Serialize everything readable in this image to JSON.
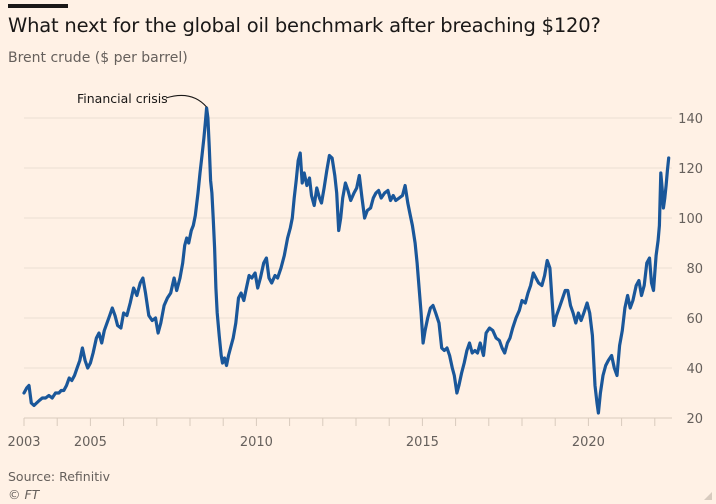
{
  "header": {
    "title": "What next for the global oil benchmark after breaching $120?",
    "subtitle": "Brent crude ($ per barrel)"
  },
  "footer": {
    "source": "Source: Refinitiv",
    "copyright": "© FT"
  },
  "colors": {
    "background": "#fff1e5",
    "line": "#1a579a",
    "grid": "#ebdfd3",
    "text": "#1a1817",
    "muted": "#66605c"
  },
  "chart_data": {
    "type": "line",
    "title": "What next for the global oil benchmark after breaching $120?",
    "subtitle": "Brent crude ($ per barrel)",
    "xlabel": "",
    "ylabel": "Brent crude ($ per barrel)",
    "xlim": [
      2003.0,
      2022.45
    ],
    "ylim": [
      20,
      145
    ],
    "grid": true,
    "y_axis_side": "right",
    "x_ticks": [
      2003,
      2005,
      2010,
      2015,
      2020
    ],
    "x_minor_ticks": [
      2003,
      2004,
      2005,
      2006,
      2007,
      2008,
      2009,
      2010,
      2011,
      2012,
      2013,
      2014,
      2015,
      2016,
      2017,
      2018,
      2019,
      2020,
      2021,
      2022
    ],
    "y_ticks": [
      20,
      40,
      60,
      80,
      100,
      120,
      140
    ],
    "annotations": [
      {
        "text": "Financial crisis",
        "x": 2008.5,
        "y": 144
      }
    ],
    "series": [
      {
        "name": "Brent crude",
        "points": [
          [
            2003.0,
            30
          ],
          [
            2003.08,
            32
          ],
          [
            2003.15,
            33
          ],
          [
            2003.22,
            26
          ],
          [
            2003.3,
            25
          ],
          [
            2003.38,
            26
          ],
          [
            2003.46,
            27
          ],
          [
            2003.55,
            28
          ],
          [
            2003.65,
            28
          ],
          [
            2003.75,
            29
          ],
          [
            2003.85,
            28
          ],
          [
            2003.95,
            30
          ],
          [
            2004.05,
            30
          ],
          [
            2004.12,
            31
          ],
          [
            2004.2,
            31
          ],
          [
            2004.28,
            33
          ],
          [
            2004.36,
            36
          ],
          [
            2004.44,
            35
          ],
          [
            2004.52,
            37
          ],
          [
            2004.6,
            40
          ],
          [
            2004.68,
            43
          ],
          [
            2004.76,
            48
          ],
          [
            2004.84,
            43
          ],
          [
            2004.92,
            40
          ],
          [
            2005.0,
            42
          ],
          [
            2005.08,
            46
          ],
          [
            2005.18,
            52
          ],
          [
            2005.26,
            54
          ],
          [
            2005.34,
            50
          ],
          [
            2005.42,
            55
          ],
          [
            2005.5,
            58
          ],
          [
            2005.58,
            61
          ],
          [
            2005.66,
            64
          ],
          [
            2005.74,
            61
          ],
          [
            2005.82,
            57
          ],
          [
            2005.92,
            56
          ],
          [
            2006.0,
            62
          ],
          [
            2006.1,
            61
          ],
          [
            2006.2,
            66
          ],
          [
            2006.3,
            72
          ],
          [
            2006.4,
            69
          ],
          [
            2006.5,
            74
          ],
          [
            2006.58,
            76
          ],
          [
            2006.66,
            70
          ],
          [
            2006.76,
            61
          ],
          [
            2006.86,
            59
          ],
          [
            2006.96,
            60
          ],
          [
            2007.04,
            54
          ],
          [
            2007.12,
            58
          ],
          [
            2007.22,
            65
          ],
          [
            2007.32,
            68
          ],
          [
            2007.42,
            70
          ],
          [
            2007.52,
            76
          ],
          [
            2007.6,
            71
          ],
          [
            2007.7,
            76
          ],
          [
            2007.78,
            82
          ],
          [
            2007.84,
            89
          ],
          [
            2007.9,
            92
          ],
          [
            2007.96,
            90
          ],
          [
            2008.04,
            95
          ],
          [
            2008.1,
            97
          ],
          [
            2008.16,
            101
          ],
          [
            2008.24,
            110
          ],
          [
            2008.3,
            118
          ],
          [
            2008.36,
            125
          ],
          [
            2008.42,
            132
          ],
          [
            2008.46,
            138
          ],
          [
            2008.5,
            144
          ],
          [
            2008.54,
            140
          ],
          [
            2008.58,
            128
          ],
          [
            2008.62,
            115
          ],
          [
            2008.66,
            110
          ],
          [
            2008.7,
            100
          ],
          [
            2008.74,
            88
          ],
          [
            2008.78,
            72
          ],
          [
            2008.82,
            62
          ],
          [
            2008.88,
            53
          ],
          [
            2008.94,
            45
          ],
          [
            2008.98,
            42
          ],
          [
            2009.04,
            44
          ],
          [
            2009.1,
            41
          ],
          [
            2009.16,
            45
          ],
          [
            2009.22,
            48
          ],
          [
            2009.3,
            52
          ],
          [
            2009.38,
            58
          ],
          [
            2009.46,
            68
          ],
          [
            2009.54,
            70
          ],
          [
            2009.62,
            67
          ],
          [
            2009.7,
            72
          ],
          [
            2009.78,
            77
          ],
          [
            2009.86,
            76
          ],
          [
            2009.96,
            78
          ],
          [
            2010.04,
            72
          ],
          [
            2010.12,
            76
          ],
          [
            2010.22,
            82
          ],
          [
            2010.3,
            84
          ],
          [
            2010.38,
            76
          ],
          [
            2010.46,
            74
          ],
          [
            2010.56,
            77
          ],
          [
            2010.64,
            76
          ],
          [
            2010.74,
            80
          ],
          [
            2010.84,
            85
          ],
          [
            2010.94,
            92
          ],
          [
            2011.02,
            96
          ],
          [
            2011.08,
            100
          ],
          [
            2011.14,
            108
          ],
          [
            2011.2,
            115
          ],
          [
            2011.26,
            123
          ],
          [
            2011.32,
            126
          ],
          [
            2011.38,
            114
          ],
          [
            2011.44,
            118
          ],
          [
            2011.52,
            113
          ],
          [
            2011.6,
            116
          ],
          [
            2011.66,
            109
          ],
          [
            2011.74,
            105
          ],
          [
            2011.82,
            112
          ],
          [
            2011.9,
            108
          ],
          [
            2011.96,
            106
          ],
          [
            2012.04,
            112
          ],
          [
            2012.12,
            119
          ],
          [
            2012.2,
            125
          ],
          [
            2012.28,
            124
          ],
          [
            2012.36,
            117
          ],
          [
            2012.42,
            110
          ],
          [
            2012.48,
            95
          ],
          [
            2012.54,
            100
          ],
          [
            2012.6,
            108
          ],
          [
            2012.68,
            114
          ],
          [
            2012.76,
            111
          ],
          [
            2012.84,
            107
          ],
          [
            2012.94,
            110
          ],
          [
            2013.02,
            112
          ],
          [
            2013.1,
            117
          ],
          [
            2013.18,
            108
          ],
          [
            2013.26,
            100
          ],
          [
            2013.34,
            103
          ],
          [
            2013.44,
            104
          ],
          [
            2013.52,
            108
          ],
          [
            2013.6,
            110
          ],
          [
            2013.68,
            111
          ],
          [
            2013.76,
            108
          ],
          [
            2013.86,
            110
          ],
          [
            2013.96,
            111
          ],
          [
            2014.04,
            107
          ],
          [
            2014.12,
            109
          ],
          [
            2014.2,
            107
          ],
          [
            2014.3,
            108
          ],
          [
            2014.4,
            109
          ],
          [
            2014.48,
            113
          ],
          [
            2014.56,
            106
          ],
          [
            2014.62,
            102
          ],
          [
            2014.7,
            97
          ],
          [
            2014.78,
            90
          ],
          [
            2014.84,
            82
          ],
          [
            2014.9,
            72
          ],
          [
            2014.96,
            62
          ],
          [
            2015.02,
            50
          ],
          [
            2015.08,
            55
          ],
          [
            2015.16,
            60
          ],
          [
            2015.24,
            64
          ],
          [
            2015.32,
            65
          ],
          [
            2015.4,
            62
          ],
          [
            2015.5,
            58
          ],
          [
            2015.58,
            48
          ],
          [
            2015.66,
            47
          ],
          [
            2015.74,
            48
          ],
          [
            2015.82,
            45
          ],
          [
            2015.9,
            40
          ],
          [
            2015.96,
            37
          ],
          [
            2016.04,
            30
          ],
          [
            2016.1,
            33
          ],
          [
            2016.18,
            38
          ],
          [
            2016.26,
            42
          ],
          [
            2016.34,
            47
          ],
          [
            2016.42,
            50
          ],
          [
            2016.5,
            46
          ],
          [
            2016.58,
            47
          ],
          [
            2016.66,
            46
          ],
          [
            2016.74,
            50
          ],
          [
            2016.84,
            45
          ],
          [
            2016.92,
            54
          ],
          [
            2017.02,
            56
          ],
          [
            2017.12,
            55
          ],
          [
            2017.22,
            52
          ],
          [
            2017.32,
            51
          ],
          [
            2017.4,
            48
          ],
          [
            2017.48,
            46
          ],
          [
            2017.56,
            50
          ],
          [
            2017.64,
            52
          ],
          [
            2017.72,
            56
          ],
          [
            2017.82,
            60
          ],
          [
            2017.92,
            63
          ],
          [
            2018.0,
            67
          ],
          [
            2018.1,
            66
          ],
          [
            2018.18,
            70
          ],
          [
            2018.26,
            73
          ],
          [
            2018.34,
            78
          ],
          [
            2018.42,
            76
          ],
          [
            2018.5,
            74
          ],
          [
            2018.6,
            73
          ],
          [
            2018.68,
            77
          ],
          [
            2018.76,
            83
          ],
          [
            2018.84,
            80
          ],
          [
            2018.9,
            68
          ],
          [
            2018.96,
            57
          ],
          [
            2019.04,
            61
          ],
          [
            2019.12,
            64
          ],
          [
            2019.2,
            67
          ],
          [
            2019.3,
            71
          ],
          [
            2019.38,
            71
          ],
          [
            2019.46,
            65
          ],
          [
            2019.54,
            62
          ],
          [
            2019.62,
            58
          ],
          [
            2019.7,
            62
          ],
          [
            2019.78,
            59
          ],
          [
            2019.86,
            62
          ],
          [
            2019.96,
            66
          ],
          [
            2020.04,
            62
          ],
          [
            2020.12,
            53
          ],
          [
            2020.2,
            33
          ],
          [
            2020.26,
            26
          ],
          [
            2020.3,
            22
          ],
          [
            2020.36,
            30
          ],
          [
            2020.44,
            37
          ],
          [
            2020.52,
            41
          ],
          [
            2020.6,
            43
          ],
          [
            2020.7,
            45
          ],
          [
            2020.78,
            40
          ],
          [
            2020.86,
            37
          ],
          [
            2020.94,
            49
          ],
          [
            2021.02,
            55
          ],
          [
            2021.1,
            64
          ],
          [
            2021.18,
            69
          ],
          [
            2021.26,
            64
          ],
          [
            2021.34,
            67
          ],
          [
            2021.44,
            73
          ],
          [
            2021.52,
            75
          ],
          [
            2021.6,
            69
          ],
          [
            2021.68,
            73
          ],
          [
            2021.76,
            82
          ],
          [
            2021.84,
            84
          ],
          [
            2021.9,
            74
          ],
          [
            2021.96,
            71
          ],
          [
            2022.04,
            85
          ],
          [
            2022.1,
            91
          ],
          [
            2022.14,
            97
          ],
          [
            2022.18,
            118
          ],
          [
            2022.22,
            112
          ],
          [
            2022.26,
            104
          ],
          [
            2022.3,
            108
          ],
          [
            2022.34,
            113
          ],
          [
            2022.38,
            119
          ],
          [
            2022.42,
            124
          ]
        ]
      }
    ]
  }
}
